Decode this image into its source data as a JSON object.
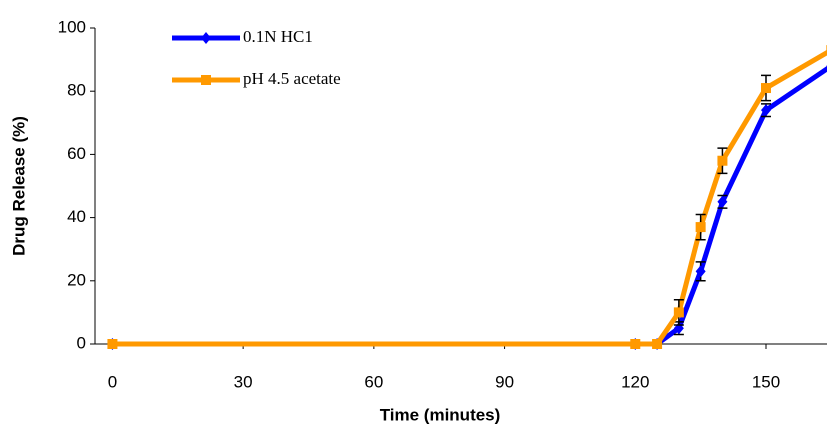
{
  "chart_data": {
    "type": "line",
    "x_label": "Time (minutes)",
    "y_label": "Drug Release (%)",
    "x": [
      0,
      120,
      125,
      130,
      135,
      140,
      150,
      165
    ],
    "series": [
      {
        "name": "0.1N HC1",
        "color": "#0000ff",
        "marker": "diamond",
        "values": [
          0,
          0,
          0,
          5,
          23,
          45,
          74,
          88
        ],
        "errors": [
          0,
          0,
          0,
          2,
          3,
          2,
          2,
          0
        ]
      },
      {
        "name": "pH 4.5 acetate",
        "color": "#ff9900",
        "marker": "square",
        "values": [
          0,
          0,
          0,
          10,
          37,
          58,
          81,
          93
        ],
        "errors": [
          0,
          0,
          0,
          4,
          4,
          4,
          4,
          0
        ]
      }
    ],
    "xlim": [
      -4,
      164
    ],
    "xticks": [
      0,
      30,
      60,
      90,
      120,
      150
    ],
    "ylim": [
      0,
      100
    ],
    "yticks": [
      0,
      20,
      40,
      60,
      80,
      100
    ]
  }
}
